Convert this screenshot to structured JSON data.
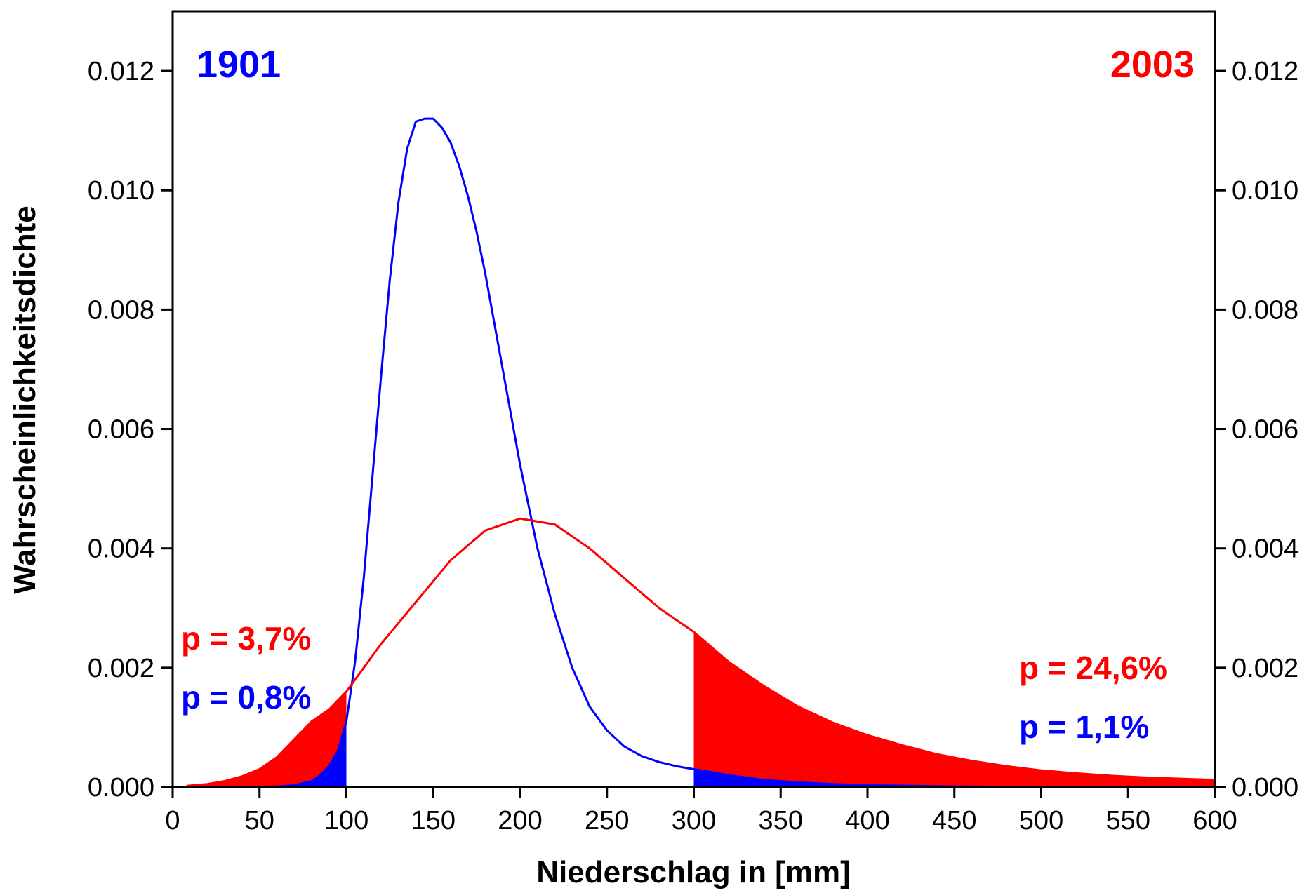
{
  "chart_data": {
    "type": "line",
    "title": "",
    "xlabel": "Niederschlag in [mm]",
    "ylabel": "Wahrscheinlichkeitsdichte",
    "xlim": [
      0,
      600
    ],
    "ylim": [
      0,
      0.013
    ],
    "xticks": [
      "0",
      "50",
      "100",
      "150",
      "200",
      "250",
      "300",
      "350",
      "400",
      "450",
      "500",
      "550",
      "600"
    ],
    "yticks": [
      "0.000",
      "0.002",
      "0.004",
      "0.006",
      "0.008",
      "0.010",
      "0.012"
    ],
    "grid": false,
    "series": [
      {
        "name": "1901",
        "color": "#0000ff",
        "x": [
          0,
          20,
          40,
          60,
          70,
          80,
          85,
          90,
          95,
          100,
          105,
          110,
          115,
          120,
          125,
          130,
          135,
          140,
          145,
          150,
          155,
          160,
          165,
          170,
          175,
          180,
          185,
          190,
          195,
          200,
          210,
          220,
          230,
          240,
          250,
          260,
          270,
          280,
          290,
          300,
          320,
          340,
          360,
          380,
          400,
          450,
          500,
          550,
          600
        ],
        "y": [
          0.0,
          0.0,
          0.0,
          1e-05,
          3e-05,
          0.0001,
          0.0002,
          0.00035,
          0.0006,
          0.0011,
          0.0021,
          0.0035,
          0.0052,
          0.0069,
          0.0085,
          0.0098,
          0.0107,
          0.01115,
          0.0112,
          0.0112,
          0.01105,
          0.0108,
          0.0104,
          0.0099,
          0.0093,
          0.0086,
          0.0078,
          0.007,
          0.0062,
          0.0054,
          0.004,
          0.0029,
          0.002,
          0.00135,
          0.00095,
          0.00068,
          0.00052,
          0.00042,
          0.00035,
          0.0003,
          0.0002,
          0.00012,
          8e-05,
          5e-05,
          3e-05,
          1e-05,
          0.0,
          0.0,
          0.0
        ]
      },
      {
        "name": "2003",
        "color": "#ff0000",
        "x": [
          8,
          20,
          30,
          40,
          50,
          60,
          70,
          80,
          90,
          100,
          120,
          140,
          160,
          180,
          200,
          220,
          240,
          260,
          280,
          300,
          320,
          340,
          360,
          380,
          400,
          420,
          440,
          460,
          480,
          500,
          520,
          540,
          560,
          580,
          600
        ],
        "y": [
          2e-05,
          5e-05,
          0.0001,
          0.00018,
          0.0003,
          0.0005,
          0.0008,
          0.0011,
          0.0013,
          0.0016,
          0.0024,
          0.0031,
          0.0038,
          0.0043,
          0.0045,
          0.0044,
          0.004,
          0.0035,
          0.003,
          0.0026,
          0.0021,
          0.0017,
          0.00135,
          0.00108,
          0.00087,
          0.0007,
          0.00055,
          0.00044,
          0.00035,
          0.00028,
          0.00023,
          0.00019,
          0.00016,
          0.00014,
          0.00012
        ]
      }
    ],
    "shaded_regions": [
      {
        "series": "2003",
        "from": 0,
        "to": 100,
        "color": "#ff0000"
      },
      {
        "series": "2003",
        "from": 300,
        "to": 600,
        "color": "#ff0000"
      },
      {
        "series": "1901",
        "from": 0,
        "to": 100,
        "color": "#0000ff"
      },
      {
        "series": "1901",
        "from": 300,
        "to": 600,
        "color": "#0000ff"
      }
    ],
    "annotations": {
      "year_1901": {
        "text": "1901",
        "color": "#0000ff"
      },
      "year_2003": {
        "text": "2003",
        "color": "#ff0000"
      },
      "p_left_red": {
        "text": "p = 3,7%",
        "color": "#ff0000"
      },
      "p_left_blue": {
        "text": "p = 0,8%",
        "color": "#0000ff"
      },
      "p_right_red": {
        "text": "p = 24,6%",
        "color": "#ff0000"
      },
      "p_right_blue": {
        "text": "p = 1,1%",
        "color": "#0000ff"
      }
    }
  }
}
